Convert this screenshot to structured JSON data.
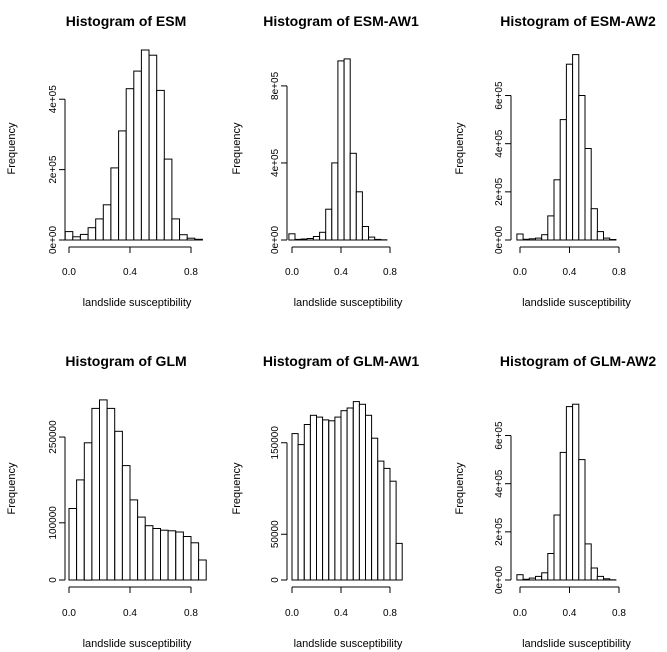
{
  "chart_data": [
    {
      "type": "bar",
      "title": "Histogram of ESM",
      "xlabel": "landslide susceptibility",
      "ylabel": "Frequency",
      "x_bin_width": 0.05,
      "x_start": -0.025,
      "xticks": [
        0.0,
        0.4,
        0.8
      ],
      "xtick_labels": [
        "0.0",
        "0.4",
        "0.8"
      ],
      "yticks": [
        0,
        200000,
        400000
      ],
      "ytick_labels": [
        "0e+00",
        "2e+05",
        "4e+05"
      ],
      "ylim": [
        0,
        520000
      ],
      "values": [
        24000,
        9000,
        16000,
        35000,
        60000,
        100000,
        205000,
        310000,
        430000,
        480000,
        540000,
        525000,
        425000,
        230000,
        60000,
        15000,
        5000,
        2000
      ],
      "grid": false
    },
    {
      "type": "bar",
      "title": "Histogram of ESM-AW1",
      "xlabel": "landslide susceptibility",
      "ylabel": "Frequency",
      "x_bin_width": 0.05,
      "x_start": -0.025,
      "xticks": [
        0.0,
        0.4,
        0.8
      ],
      "xtick_labels": [
        "0.0",
        "0.4",
        "0.8"
      ],
      "yticks": [
        0,
        400000,
        800000
      ],
      "ytick_labels": [
        "0e+00",
        "4e+05",
        "8e+05"
      ],
      "ylim": [
        0,
        950000
      ],
      "values": [
        32000,
        3000,
        5000,
        8000,
        18000,
        40000,
        160000,
        400000,
        930000,
        940000,
        450000,
        250000,
        70000,
        15000,
        3000,
        1000
      ],
      "grid": false
    },
    {
      "type": "bar",
      "title": "Histogram of ESM-AW2",
      "xlabel": "landslide susceptibility",
      "ylabel": "Frequency",
      "x_bin_width": 0.05,
      "x_start": -0.025,
      "xticks": [
        0.0,
        0.4,
        0.8
      ],
      "xtick_labels": [
        "0.0",
        "0.4",
        "0.8"
      ],
      "yticks": [
        0,
        200000,
        400000,
        600000
      ],
      "ytick_labels": [
        "0e+00",
        "2e+05",
        "4e+05",
        "6e+05"
      ],
      "ylim": [
        0,
        760000
      ],
      "values": [
        25000,
        3000,
        5000,
        8000,
        22000,
        100000,
        250000,
        500000,
        730000,
        770000,
        600000,
        380000,
        130000,
        35000,
        8000,
        2000
      ],
      "grid": false
    },
    {
      "type": "bar",
      "title": "Histogram of GLM",
      "xlabel": "landslide susceptibility",
      "ylabel": "Frequency",
      "x_bin_width": 0.05,
      "x_start": 0.0,
      "xticks": [
        0.0,
        0.4,
        0.8
      ],
      "xtick_labels": [
        "0.0",
        "0.4",
        "0.8"
      ],
      "yticks": [
        0,
        100000,
        250000
      ],
      "ytick_labels": [
        "0",
        "100000",
        "250000"
      ],
      "ylim": [
        0,
        320000
      ],
      "values": [
        125000,
        175000,
        240000,
        300000,
        315000,
        300000,
        260000,
        200000,
        140000,
        110000,
        95000,
        90000,
        87000,
        86000,
        84000,
        76000,
        65000,
        35000
      ],
      "grid": false
    },
    {
      "type": "bar",
      "title": "Histogram of GLM-AW1",
      "xlabel": "landslide susceptibility",
      "ylabel": "Frequency",
      "x_bin_width": 0.05,
      "x_start": 0.0,
      "xticks": [
        0.0,
        0.4,
        0.8
      ],
      "xtick_labels": [
        "0.0",
        "0.4",
        "0.8"
      ],
      "yticks": [
        0,
        50000,
        150000
      ],
      "ytick_labels": [
        "0",
        "50000",
        "150000"
      ],
      "ylim": [
        0,
        200000
      ],
      "values": [
        160000,
        148000,
        170000,
        180000,
        178000,
        175000,
        174000,
        178000,
        185000,
        188000,
        195000,
        192000,
        180000,
        155000,
        130000,
        122000,
        108000,
        40000
      ],
      "grid": false
    },
    {
      "type": "bar",
      "title": "Histogram of GLM-AW2",
      "xlabel": "landslide susceptibility",
      "ylabel": "Frequency",
      "x_bin_width": 0.05,
      "x_start": -0.025,
      "xticks": [
        0.0,
        0.4,
        0.8
      ],
      "xtick_labels": [
        "0.0",
        "0.4",
        "0.8"
      ],
      "yticks": [
        0,
        200000,
        400000,
        600000
      ],
      "ytick_labels": [
        "0e+00",
        "2e+05",
        "4e+05",
        "6e+05"
      ],
      "ylim": [
        0,
        760000
      ],
      "values": [
        22000,
        3000,
        8000,
        15000,
        30000,
        110000,
        270000,
        530000,
        720000,
        730000,
        500000,
        150000,
        50000,
        15000,
        5000,
        1000
      ],
      "grid": false
    }
  ]
}
